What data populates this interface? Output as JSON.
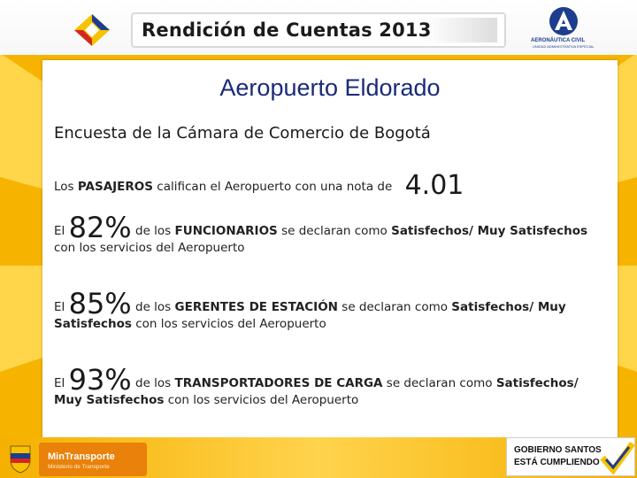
{
  "header": {
    "title": "Rendición de Cuentas 2013",
    "aero_logo_name": "AERONÁUTICA CIVIL",
    "aero_logo_sub": "UNIDAD ADMINISTRATIVA ESPECIAL"
  },
  "slide": {
    "title": "Aeropuerto Eldorado",
    "survey": "Encuesta de la Cámara de Comercio de Bogotá",
    "pasajeros": {
      "prefix": "Los",
      "key": "PASAJEROS",
      "text": "califican el Aeropuerto con una nota de",
      "score": "4.01"
    },
    "funcionarios": {
      "el": "El",
      "percent": "82%",
      "de": "de los",
      "key": "FUNCIONARIOS",
      "mid": "se declaran como",
      "sat": "Satisfechos/ Muy Satisfechos",
      "line2": "con los servicios del Aeropuerto"
    },
    "gerentes": {
      "el": "El",
      "percent": "85%",
      "de": "de los",
      "key": "GERENTES DE ESTACIÓN",
      "mid": "se declaran como",
      "sat1": "Satisfechos/ Muy",
      "sat2": "Satisfechos",
      "line2": "con los servicios del Aeropuerto"
    },
    "transportadores": {
      "el": "El",
      "percent": "93%",
      "de": "de los",
      "key": "TRANSPORTADORES DE CARGA",
      "mid": "se declaran como",
      "sat1": "Satisfechos/",
      "sat2": "Muy Satisfechos",
      "line2": "con los servicios del Aeropuerto"
    }
  },
  "footer": {
    "ministry": "MinTransporte",
    "ministry_sub": "Ministerio de Transporte",
    "gov_line1": "GOBIERNO SANTOS",
    "gov_line2": "ESTÁ CUMPLIENDO"
  },
  "colors": {
    "background": "#f6b400",
    "title_blue": "#1a2a7a",
    "ministry_orange": "#e9810a"
  }
}
